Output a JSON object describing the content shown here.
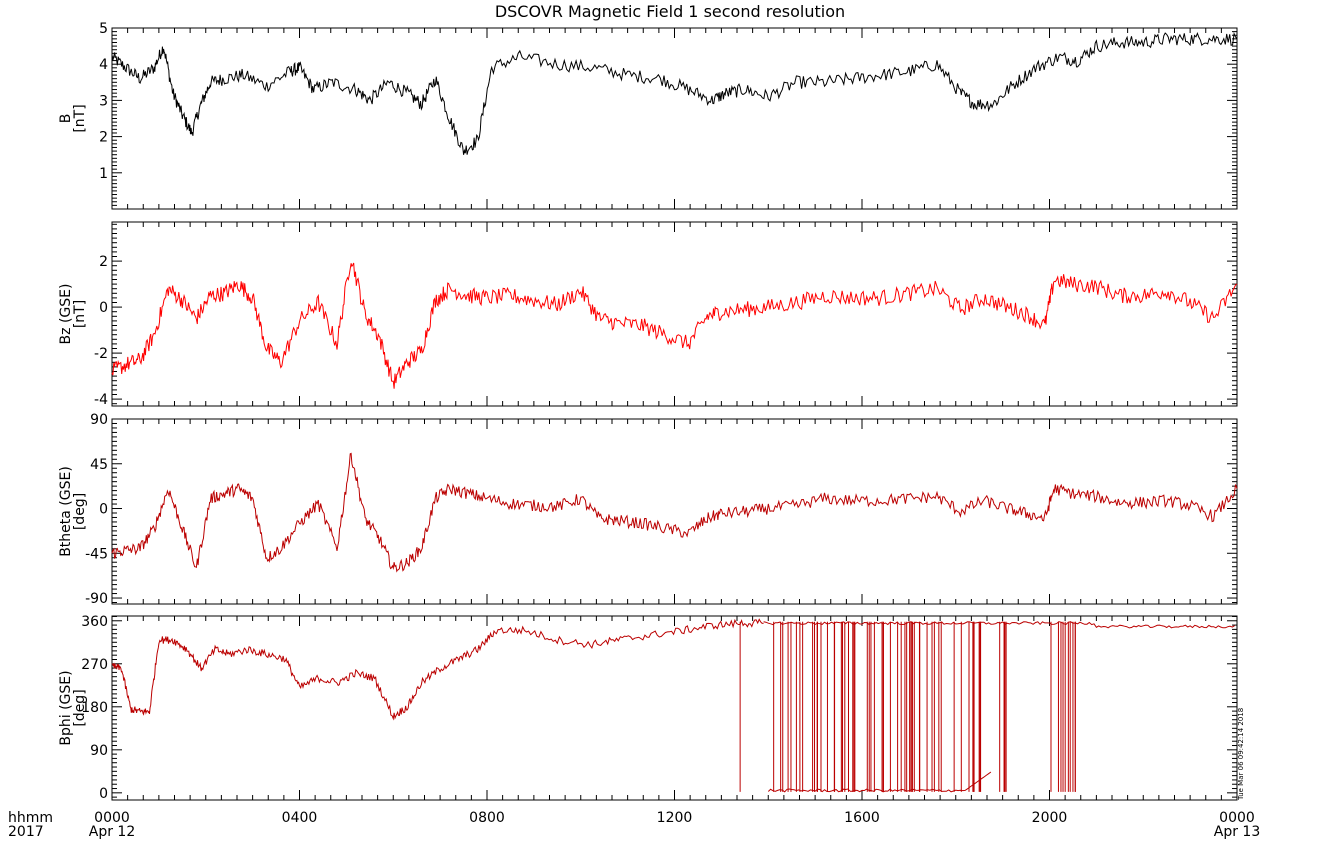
{
  "chart_data": {
    "title": "DSCOVR Magnetic Field 1 second resolution",
    "x_axis": {
      "unit_label": "hhmm",
      "year_label": "2017",
      "start_date": "Apr 12",
      "end_date": "Apr 13",
      "range_hours": [
        0,
        24
      ],
      "tick_hours": [
        0,
        4,
        8,
        12,
        16,
        20,
        24
      ],
      "tick_labels": [
        "0000",
        "0400",
        "0800",
        "1200",
        "1600",
        "2000",
        "0000"
      ]
    },
    "stamp": "Tue Mar 06 09:42:14 2018",
    "panels": [
      {
        "type": "line",
        "ylabel": "B",
        "yunit": "[nT]",
        "color": "#000000",
        "ylim": [
          0,
          5
        ],
        "yticks": [
          1,
          2,
          3,
          4,
          5
        ],
        "ytick_labels": [
          "1",
          "2",
          "3",
          "4",
          "5"
        ],
        "grid": false,
        "x": [
          0,
          0.3,
          0.6,
          0.9,
          1.1,
          1.3,
          1.5,
          1.7,
          1.9,
          2.1,
          2.4,
          2.8,
          3.3,
          3.8,
          4.0,
          4.3,
          4.7,
          5.2,
          5.5,
          5.9,
          6.3,
          6.6,
          6.9,
          7.2,
          7.5,
          7.8,
          8.1,
          8.7,
          9.5,
          10.3,
          11.0,
          11.7,
          12.3,
          12.8,
          13.1,
          13.5,
          14.0,
          14.6,
          15.2,
          15.8,
          16.4,
          17.0,
          17.6,
          18.1,
          18.4,
          18.8,
          19.2,
          19.7,
          20.2,
          20.6,
          21.0,
          21.5,
          22.0,
          22.5,
          23.0,
          23.5,
          24.0
        ],
        "values": [
          4.2,
          3.9,
          3.6,
          3.9,
          4.5,
          3.2,
          2.6,
          2.1,
          2.9,
          3.5,
          3.6,
          3.7,
          3.4,
          3.8,
          3.9,
          3.3,
          3.5,
          3.3,
          3.0,
          3.5,
          3.2,
          2.9,
          3.6,
          2.5,
          1.6,
          1.9,
          3.9,
          4.2,
          4.0,
          3.9,
          3.7,
          3.6,
          3.3,
          3.0,
          3.2,
          3.3,
          3.1,
          3.5,
          3.5,
          3.6,
          3.7,
          3.8,
          4.0,
          3.2,
          2.9,
          2.9,
          3.4,
          3.9,
          4.2,
          4.1,
          4.5,
          4.6,
          4.6,
          4.7,
          4.7,
          4.7,
          4.7
        ]
      },
      {
        "type": "line",
        "ylabel": "Bz (GSE)",
        "yunit": "[nT]",
        "color": "#ff0000",
        "ylim": [
          -4.3,
          3.7
        ],
        "yticks": [
          -4,
          -2,
          0,
          2
        ],
        "ytick_labels": [
          "-4",
          "-2",
          "0",
          "2"
        ],
        "grid": false,
        "x": [
          0,
          0.3,
          0.6,
          0.9,
          1.2,
          1.5,
          1.8,
          2.1,
          2.4,
          2.7,
          3.0,
          3.3,
          3.6,
          4.0,
          4.4,
          4.8,
          5.1,
          5.4,
          5.7,
          6.0,
          6.3,
          6.6,
          6.9,
          7.2,
          7.6,
          8.0,
          8.5,
          9.0,
          9.5,
          10.0,
          10.4,
          10.8,
          11.3,
          11.8,
          12.3,
          12.7,
          13.0,
          13.5,
          14.0,
          14.6,
          15.2,
          15.8,
          16.4,
          17.0,
          17.6,
          18.1,
          18.6,
          19.1,
          19.5,
          19.9,
          20.1,
          20.5,
          21.0,
          21.5,
          22.0,
          22.5,
          23.0,
          23.5,
          24.0
        ],
        "values": [
          -2.8,
          -2.5,
          -2.3,
          -1.2,
          0.8,
          0.3,
          -0.5,
          0.5,
          0.6,
          1.0,
          0.4,
          -1.8,
          -2.4,
          -0.6,
          0.2,
          -1.6,
          2.2,
          -0.3,
          -1.3,
          -3.3,
          -2.4,
          -1.9,
          0.3,
          0.8,
          0.5,
          0.4,
          0.5,
          0.3,
          0.1,
          0.7,
          -0.5,
          -0.7,
          -0.8,
          -1.2,
          -1.6,
          -0.4,
          -0.2,
          -0.1,
          0.0,
          0.2,
          0.5,
          0.4,
          0.4,
          0.6,
          0.8,
          -0.1,
          0.4,
          0.0,
          -0.3,
          -0.8,
          1.2,
          1.0,
          0.9,
          0.5,
          0.5,
          0.7,
          0.2,
          -0.5,
          1.0
        ]
      },
      {
        "type": "line",
        "ylabel": "Btheta (GSE)",
        "yunit": "[deg]",
        "color": "#bb0000",
        "ylim": [
          -96,
          90
        ],
        "yticks": [
          -90,
          -45,
          0,
          45,
          90
        ],
        "ytick_labels": [
          "-90",
          "-45",
          "0",
          "45",
          "90"
        ],
        "grid": false,
        "x": [
          0,
          0.3,
          0.6,
          0.9,
          1.2,
          1.5,
          1.8,
          2.1,
          2.4,
          2.7,
          3.0,
          3.3,
          3.6,
          4.0,
          4.4,
          4.8,
          5.1,
          5.4,
          5.7,
          6.0,
          6.3,
          6.6,
          6.9,
          7.2,
          7.6,
          8.0,
          8.5,
          9.0,
          9.5,
          10.0,
          10.4,
          10.8,
          11.3,
          11.8,
          12.3,
          12.7,
          13.0,
          13.5,
          14.0,
          14.6,
          15.2,
          15.8,
          16.4,
          17.0,
          17.6,
          18.1,
          18.6,
          19.1,
          19.5,
          19.9,
          20.1,
          20.5,
          21.0,
          21.5,
          22.0,
          22.5,
          23.0,
          23.5,
          24.0
        ],
        "values": [
          -45,
          -42,
          -40,
          -20,
          20,
          -20,
          -60,
          10,
          15,
          20,
          10,
          -50,
          -40,
          -15,
          5,
          -40,
          55,
          -10,
          -30,
          -60,
          -55,
          -40,
          10,
          20,
          15,
          10,
          5,
          3,
          2,
          10,
          -10,
          -12,
          -15,
          -20,
          -25,
          -10,
          -5,
          -3,
          0,
          3,
          10,
          8,
          8,
          10,
          12,
          -3,
          8,
          0,
          -5,
          -10,
          20,
          15,
          12,
          6,
          6,
          8,
          3,
          -8,
          20
        ]
      },
      {
        "type": "line",
        "ylabel": "Bphi (GSE)",
        "yunit": "[deg]",
        "color": "#bb0000",
        "ylim": [
          -15,
          370
        ],
        "yticks": [
          0,
          90,
          180,
          270,
          360
        ],
        "ytick_labels": [
          "0",
          "90",
          "180",
          "270",
          "360"
        ],
        "grid": false,
        "x": [
          0,
          0.2,
          0.4,
          0.6,
          0.8,
          1.0,
          1.3,
          1.6,
          1.9,
          2.2,
          2.5,
          2.9,
          3.3,
          3.7,
          4.0,
          4.4,
          4.8,
          5.2,
          5.6,
          6.0,
          6.3,
          6.6,
          7.0,
          7.4,
          7.8,
          8.2,
          8.8,
          9.5,
          10.2,
          10.8,
          11.5,
          12.2,
          12.8,
          13.4,
          13.9
        ],
        "values": [
          265,
          260,
          175,
          170,
          170,
          320,
          320,
          300,
          260,
          300,
          290,
          300,
          290,
          280,
          220,
          240,
          230,
          250,
          240,
          160,
          180,
          230,
          260,
          280,
          300,
          340,
          340,
          320,
          310,
          320,
          330,
          340,
          350,
          355,
          355
        ]
      }
    ]
  }
}
